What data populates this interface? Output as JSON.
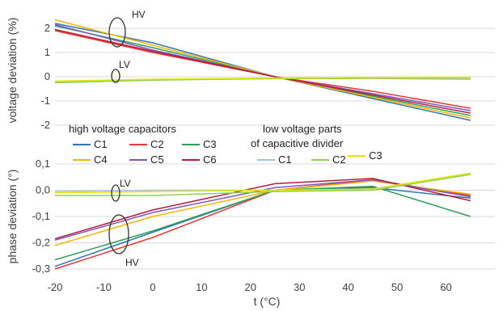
{
  "chart_data": [
    {
      "type": "line",
      "ylabel": "voltage deviation (%)",
      "ylim": [
        -2,
        2.5
      ],
      "yticks": [
        "-2",
        "-1",
        "0",
        "1",
        "2"
      ],
      "xlim": [
        -20,
        70
      ],
      "grid": true,
      "annotations": [
        "HV",
        "LV"
      ],
      "series": [
        {
          "name": "C1",
          "color": "#2e75b6",
          "x": [
            -20,
            0,
            25,
            45,
            65
          ],
          "y": [
            2.2,
            1.4,
            0.0,
            -0.9,
            -1.8
          ]
        },
        {
          "name": "C2",
          "color": "#e53935",
          "x": [
            -20,
            0,
            25,
            45,
            65
          ],
          "y": [
            1.9,
            1.0,
            0.0,
            -0.6,
            -1.3
          ]
        },
        {
          "name": "C3",
          "color": "#2e9e5a",
          "x": [
            -20,
            0,
            25,
            45,
            65
          ],
          "y": [
            2.1,
            1.2,
            0.0,
            -0.8,
            -1.6
          ]
        },
        {
          "name": "C4",
          "color": "#f5b400",
          "x": [
            -20,
            0,
            25,
            45,
            65
          ],
          "y": [
            2.35,
            1.3,
            0.0,
            -0.85,
            -1.7
          ]
        },
        {
          "name": "C5",
          "color": "#7e57c2",
          "x": [
            -20,
            0,
            25,
            45,
            65
          ],
          "y": [
            2.15,
            1.1,
            0.0,
            -0.7,
            -1.4
          ]
        },
        {
          "name": "C6",
          "color": "#b71c3c",
          "x": [
            -20,
            0,
            25,
            45,
            65
          ],
          "y": [
            1.95,
            1.05,
            0.0,
            -0.75,
            -1.5
          ]
        },
        {
          "name": "C1",
          "color": "#9dc3e6",
          "x": [
            -20,
            0,
            25,
            45,
            65
          ],
          "y": [
            -0.2,
            -0.12,
            -0.07,
            -0.05,
            -0.05
          ]
        },
        {
          "name": "C2",
          "color": "#92d050",
          "x": [
            -20,
            0,
            25,
            45,
            65
          ],
          "y": [
            -0.25,
            -0.14,
            -0.08,
            -0.07,
            -0.1
          ]
        },
        {
          "name": "C3",
          "color": "#e6e600",
          "x": [
            -20,
            0,
            25,
            45,
            65
          ],
          "y": [
            -0.18,
            -0.1,
            -0.05,
            -0.03,
            -0.02
          ]
        }
      ]
    },
    {
      "type": "line",
      "xlabel": "t (°C)",
      "ylabel": "phase deviation (°)",
      "ylim": [
        -0.3,
        0.1
      ],
      "yticks": [
        "-0,3",
        "-0,2",
        "-0,1",
        "0,0",
        "0,1"
      ],
      "xlim": [
        -20,
        70
      ],
      "xticks": [
        "-20",
        "-10",
        "0",
        "10",
        "20",
        "30",
        "40",
        "50",
        "60"
      ],
      "grid": true,
      "annotations": [
        "LV",
        "HV"
      ],
      "series": [
        {
          "name": "C1",
          "color": "#2e75b6",
          "x": [
            -20,
            0,
            25,
            45,
            65
          ],
          "y": [
            -0.29,
            -0.16,
            0.0,
            0.01,
            -0.03
          ]
        },
        {
          "name": "C2",
          "color": "#e53935",
          "x": [
            -20,
            0,
            25,
            45,
            65
          ],
          "y": [
            -0.3,
            -0.18,
            0.0,
            0.04,
            -0.02
          ]
        },
        {
          "name": "C3",
          "color": "#2e9e5a",
          "x": [
            -20,
            0,
            25,
            45,
            65
          ],
          "y": [
            -0.265,
            -0.155,
            0.0,
            0.015,
            -0.1
          ]
        },
        {
          "name": "C4",
          "color": "#f5b400",
          "x": [
            -20,
            0,
            25,
            45,
            65
          ],
          "y": [
            -0.21,
            -0.1,
            0.0,
            0.035,
            -0.015
          ]
        },
        {
          "name": "C5",
          "color": "#7e57c2",
          "x": [
            -20,
            0,
            25,
            45,
            65
          ],
          "y": [
            -0.19,
            -0.085,
            0.01,
            0.04,
            -0.025
          ]
        },
        {
          "name": "C6",
          "color": "#b71c3c",
          "x": [
            -20,
            0,
            25,
            45,
            65
          ],
          "y": [
            -0.185,
            -0.075,
            0.025,
            0.045,
            -0.04
          ]
        },
        {
          "name": "C1",
          "color": "#9dc3e6",
          "x": [
            -20,
            0,
            25,
            45,
            65
          ],
          "y": [
            -0.005,
            0.0,
            0.0,
            0.005,
            0.065
          ]
        },
        {
          "name": "C2",
          "color": "#92d050",
          "x": [
            -20,
            0,
            25,
            45,
            65
          ],
          "y": [
            -0.02,
            -0.02,
            -0.005,
            0.0,
            0.06
          ]
        },
        {
          "name": "C3",
          "color": "#e6e600",
          "x": [
            -20,
            0,
            25,
            45,
            65
          ],
          "y": [
            -0.01,
            -0.005,
            0.0,
            0.005,
            0.065
          ]
        }
      ]
    }
  ],
  "legend": {
    "hv_title": "high voltage capacitors",
    "lv_title_line1": "low voltage parts",
    "lv_title_line2": "of capacitive divider",
    "hv_items": [
      {
        "label": "C1",
        "color": "#2e75b6"
      },
      {
        "label": "C2",
        "color": "#e53935"
      },
      {
        "label": "C3",
        "color": "#2e9e5a"
      },
      {
        "label": "C4",
        "color": "#f5b400"
      },
      {
        "label": "C5",
        "color": "#7e57c2"
      },
      {
        "label": "C6",
        "color": "#b71c3c"
      }
    ],
    "lv_items": [
      {
        "label": "C1",
        "color": "#9dc3e6"
      },
      {
        "label": "C2",
        "color": "#92d050"
      },
      {
        "label": "C3",
        "color": "#e6e600"
      }
    ]
  }
}
